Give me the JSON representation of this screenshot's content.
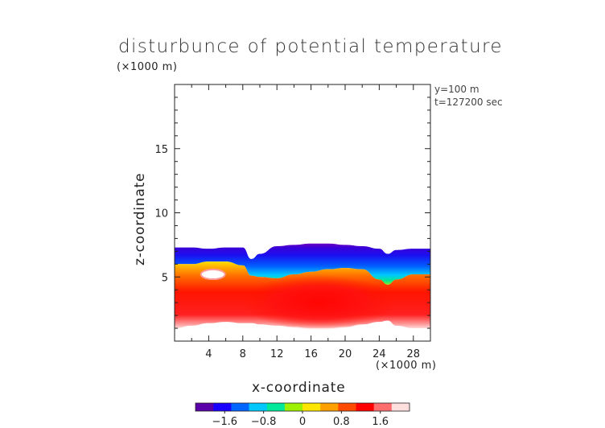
{
  "chart_data": {
    "type": "heatmap",
    "title": "disturbunce of potential temperature",
    "xlabel": "x-coordinate",
    "ylabel": "z-coordinate",
    "x_scale_label": "(×1000 m)",
    "y_scale_label": "(×1000 m)",
    "annotations": [
      "y=100 m",
      "t=127200 sec"
    ],
    "xlim": [
      0,
      30
    ],
    "ylim": [
      0,
      20
    ],
    "x_ticks": [
      4,
      8,
      12,
      16,
      20,
      24,
      28
    ],
    "y_ticks": [
      5,
      10,
      15
    ],
    "colorbar": {
      "ticks": [
        "−1.6",
        "−0.8",
        "0",
        "0.8",
        "1.6"
      ],
      "tick_values": [
        -1.6,
        -0.8,
        0,
        0.8,
        1.6
      ],
      "range": [
        -2.2,
        2.2
      ],
      "colors": [
        "#5b00a8",
        "#1a00ff",
        "#0066ff",
        "#00c8ff",
        "#00e89a",
        "#9cf000",
        "#ffe600",
        "#ffa000",
        "#ff4a00",
        "#ff0000",
        "#ff6e6e",
        "#ffdede"
      ]
    },
    "layers": {
      "x": [
        0,
        2,
        4,
        6,
        8,
        9,
        10,
        12,
        14,
        16,
        18,
        20,
        22,
        24,
        25,
        26,
        28,
        30
      ],
      "cloud_top": [
        7.3,
        7.3,
        7.2,
        7.3,
        7.3,
        6.4,
        6.8,
        7.4,
        7.5,
        7.6,
        7.6,
        7.5,
        7.4,
        7.2,
        6.8,
        7.1,
        7.2,
        7.2
      ],
      "neutral_level": [
        6.0,
        6.0,
        6.2,
        6.2,
        5.9,
        5.1,
        5.0,
        4.9,
        5.2,
        5.4,
        5.6,
        5.7,
        5.6,
        4.8,
        4.4,
        4.8,
        5.2,
        5.2
      ],
      "warm_bottom": [
        1.0,
        1.2,
        1.4,
        1.5,
        1.4,
        1.4,
        1.3,
        1.2,
        1.1,
        1.0,
        1.0,
        1.1,
        1.3,
        1.5,
        1.6,
        1.2,
        1.0,
        1.0
      ],
      "warm_max_center_x": 17,
      "white_pocket": {
        "x": 4.5,
        "z": 5.2
      }
    }
  }
}
